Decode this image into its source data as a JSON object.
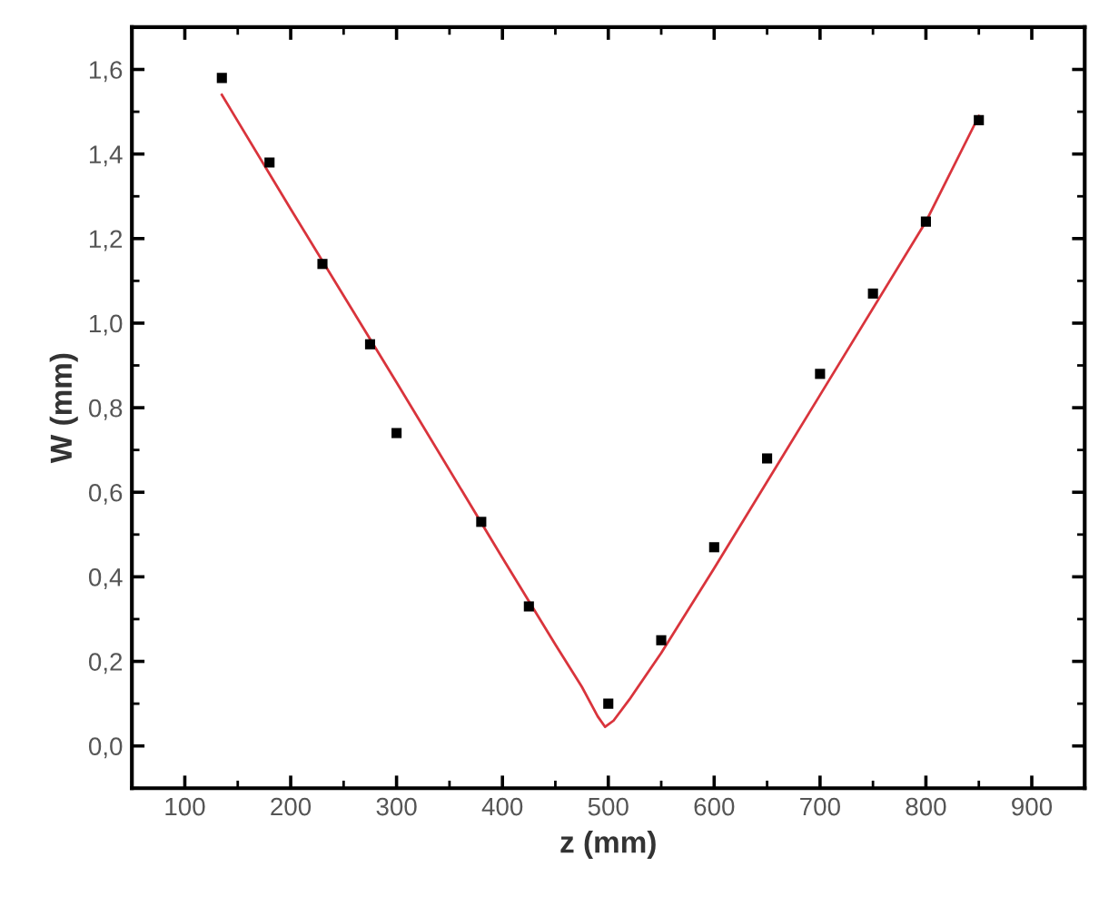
{
  "chart_data": {
    "type": "scatter",
    "xlabel": "z (mm)",
    "ylabel": "W (mm)",
    "xlim": [
      50,
      950
    ],
    "ylim": [
      -0.1,
      1.7
    ],
    "xticks": [
      100,
      200,
      300,
      400,
      500,
      600,
      700,
      800,
      900
    ],
    "yticks": [
      {
        "value": 0,
        "label": "0,0"
      },
      {
        "value": 0.2,
        "label": "0,2"
      },
      {
        "value": 0.4,
        "label": "0,4"
      },
      {
        "value": 0.6,
        "label": "0,6"
      },
      {
        "value": 0.8,
        "label": "0,8"
      },
      {
        "value": 1.0,
        "label": "1,0"
      },
      {
        "value": 1.2,
        "label": "1,2"
      },
      {
        "value": 1.4,
        "label": "1,4"
      },
      {
        "value": 1.6,
        "label": "1,6"
      }
    ],
    "grid": false,
    "legend": false,
    "series": [
      {
        "marker": "square",
        "color": "#000000",
        "x": [
          135,
          180,
          230,
          275,
          300,
          380,
          425,
          500,
          550,
          600,
          650,
          700,
          750,
          800,
          850
        ],
        "values": [
          1.58,
          1.38,
          1.14,
          0.95,
          0.74,
          0.53,
          0.33,
          0.1,
          0.25,
          0.47,
          0.68,
          0.88,
          1.07,
          1.24,
          1.48
        ]
      },
      {
        "type": "line",
        "marker": "none",
        "line_style": "solid",
        "color": "#d9343c",
        "x": [
          135,
          200,
          300,
          400,
          450,
          475,
          490,
          497,
          505,
          520,
          550,
          600,
          700,
          800,
          850
        ],
        "values": [
          1.54,
          1.27,
          0.86,
          0.445,
          0.24,
          0.14,
          0.07,
          0.045,
          0.06,
          0.11,
          0.22,
          0.42,
          0.83,
          1.24,
          1.49
        ]
      }
    ]
  }
}
